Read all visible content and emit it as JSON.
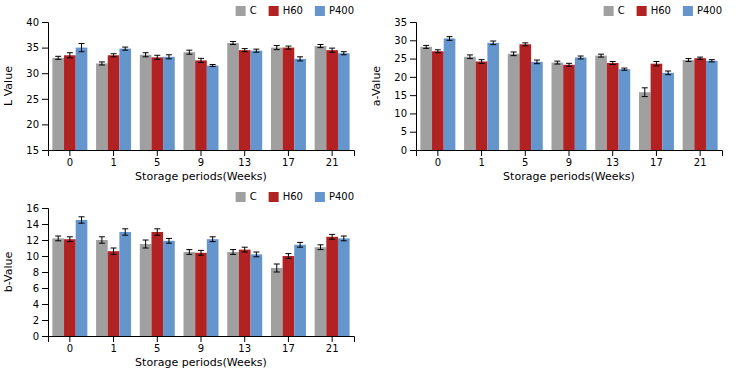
{
  "chart_data": [
    {
      "type": "bar",
      "categories": [
        0,
        1,
        5,
        9,
        13,
        17,
        21
      ],
      "xlabel": "Storage periods(Weeks)",
      "ylabel": "L Value",
      "series": [
        {
          "name": "C",
          "color": "#a0a0a0",
          "values": [
            33.0,
            31.9,
            33.6,
            34.1,
            35.9,
            35.0,
            35.3
          ],
          "errors": [
            0.3,
            0.3,
            0.4,
            0.4,
            0.3,
            0.4,
            0.3
          ]
        },
        {
          "name": "H60",
          "color": "#b22222",
          "values": [
            33.5,
            33.5,
            33.1,
            32.5,
            34.5,
            35.0,
            34.5
          ],
          "errors": [
            0.5,
            0.3,
            0.4,
            0.4,
            0.3,
            0.3,
            0.4
          ]
        },
        {
          "name": "P400",
          "color": "#6495cd",
          "values": [
            35.0,
            34.8,
            33.2,
            31.5,
            34.4,
            32.8,
            33.9
          ],
          "errors": [
            0.8,
            0.3,
            0.4,
            0.2,
            0.3,
            0.4,
            0.3
          ]
        }
      ],
      "ylim": [
        15,
        40
      ],
      "yticks": [
        15,
        20,
        25,
        30,
        35,
        40
      ],
      "grid": false,
      "legend": "upper right"
    },
    {
      "type": "bar",
      "categories": [
        0,
        1,
        5,
        9,
        13,
        17,
        21
      ],
      "xlabel": "Storage periods(Weeks)",
      "ylabel": "a-Value",
      "series": [
        {
          "name": "C",
          "color": "#a0a0a0",
          "values": [
            28.2,
            25.5,
            26.3,
            23.9,
            25.8,
            15.8,
            24.6
          ],
          "errors": [
            0.4,
            0.5,
            0.5,
            0.4,
            0.4,
            1.2,
            0.4
          ]
        },
        {
          "name": "H60",
          "color": "#b22222",
          "values": [
            27.0,
            24.2,
            28.9,
            23.3,
            23.8,
            23.6,
            25.1
          ],
          "errors": [
            0.4,
            0.5,
            0.4,
            0.4,
            0.4,
            0.6,
            0.3
          ]
        },
        {
          "name": "P400",
          "color": "#6495cd",
          "values": [
            30.5,
            29.3,
            24.1,
            25.3,
            22.1,
            21.1,
            24.4
          ],
          "errors": [
            0.5,
            0.5,
            0.5,
            0.4,
            0.3,
            0.5,
            0.3
          ]
        }
      ],
      "ylim": [
        0,
        35
      ],
      "yticks": [
        0,
        5,
        10,
        15,
        20,
        25,
        30,
        35
      ],
      "grid": false,
      "legend": "upper right"
    },
    {
      "type": "bar",
      "categories": [
        0,
        1,
        5,
        9,
        13,
        17,
        21
      ],
      "xlabel": "Storage periods(Weeks)",
      "ylabel": "b-Value",
      "series": [
        {
          "name": "C",
          "color": "#a0a0a0",
          "values": [
            12.2,
            12.0,
            11.5,
            10.5,
            10.5,
            8.5,
            11.1
          ],
          "errors": [
            0.3,
            0.4,
            0.5,
            0.3,
            0.3,
            0.5,
            0.3
          ]
        },
        {
          "name": "H60",
          "color": "#b22222",
          "values": [
            12.1,
            10.6,
            13.0,
            10.4,
            10.8,
            10.0,
            12.4
          ],
          "errors": [
            0.3,
            0.4,
            0.4,
            0.3,
            0.3,
            0.3,
            0.3
          ]
        },
        {
          "name": "P400",
          "color": "#6495cd",
          "values": [
            14.5,
            13.0,
            11.9,
            12.1,
            10.2,
            11.4,
            12.2
          ],
          "errors": [
            0.4,
            0.4,
            0.3,
            0.3,
            0.3,
            0.3,
            0.3
          ]
        }
      ],
      "ylim": [
        0,
        16
      ],
      "yticks": [
        0,
        2,
        4,
        6,
        8,
        10,
        12,
        14,
        16
      ],
      "grid": false,
      "legend": "upper right"
    }
  ]
}
